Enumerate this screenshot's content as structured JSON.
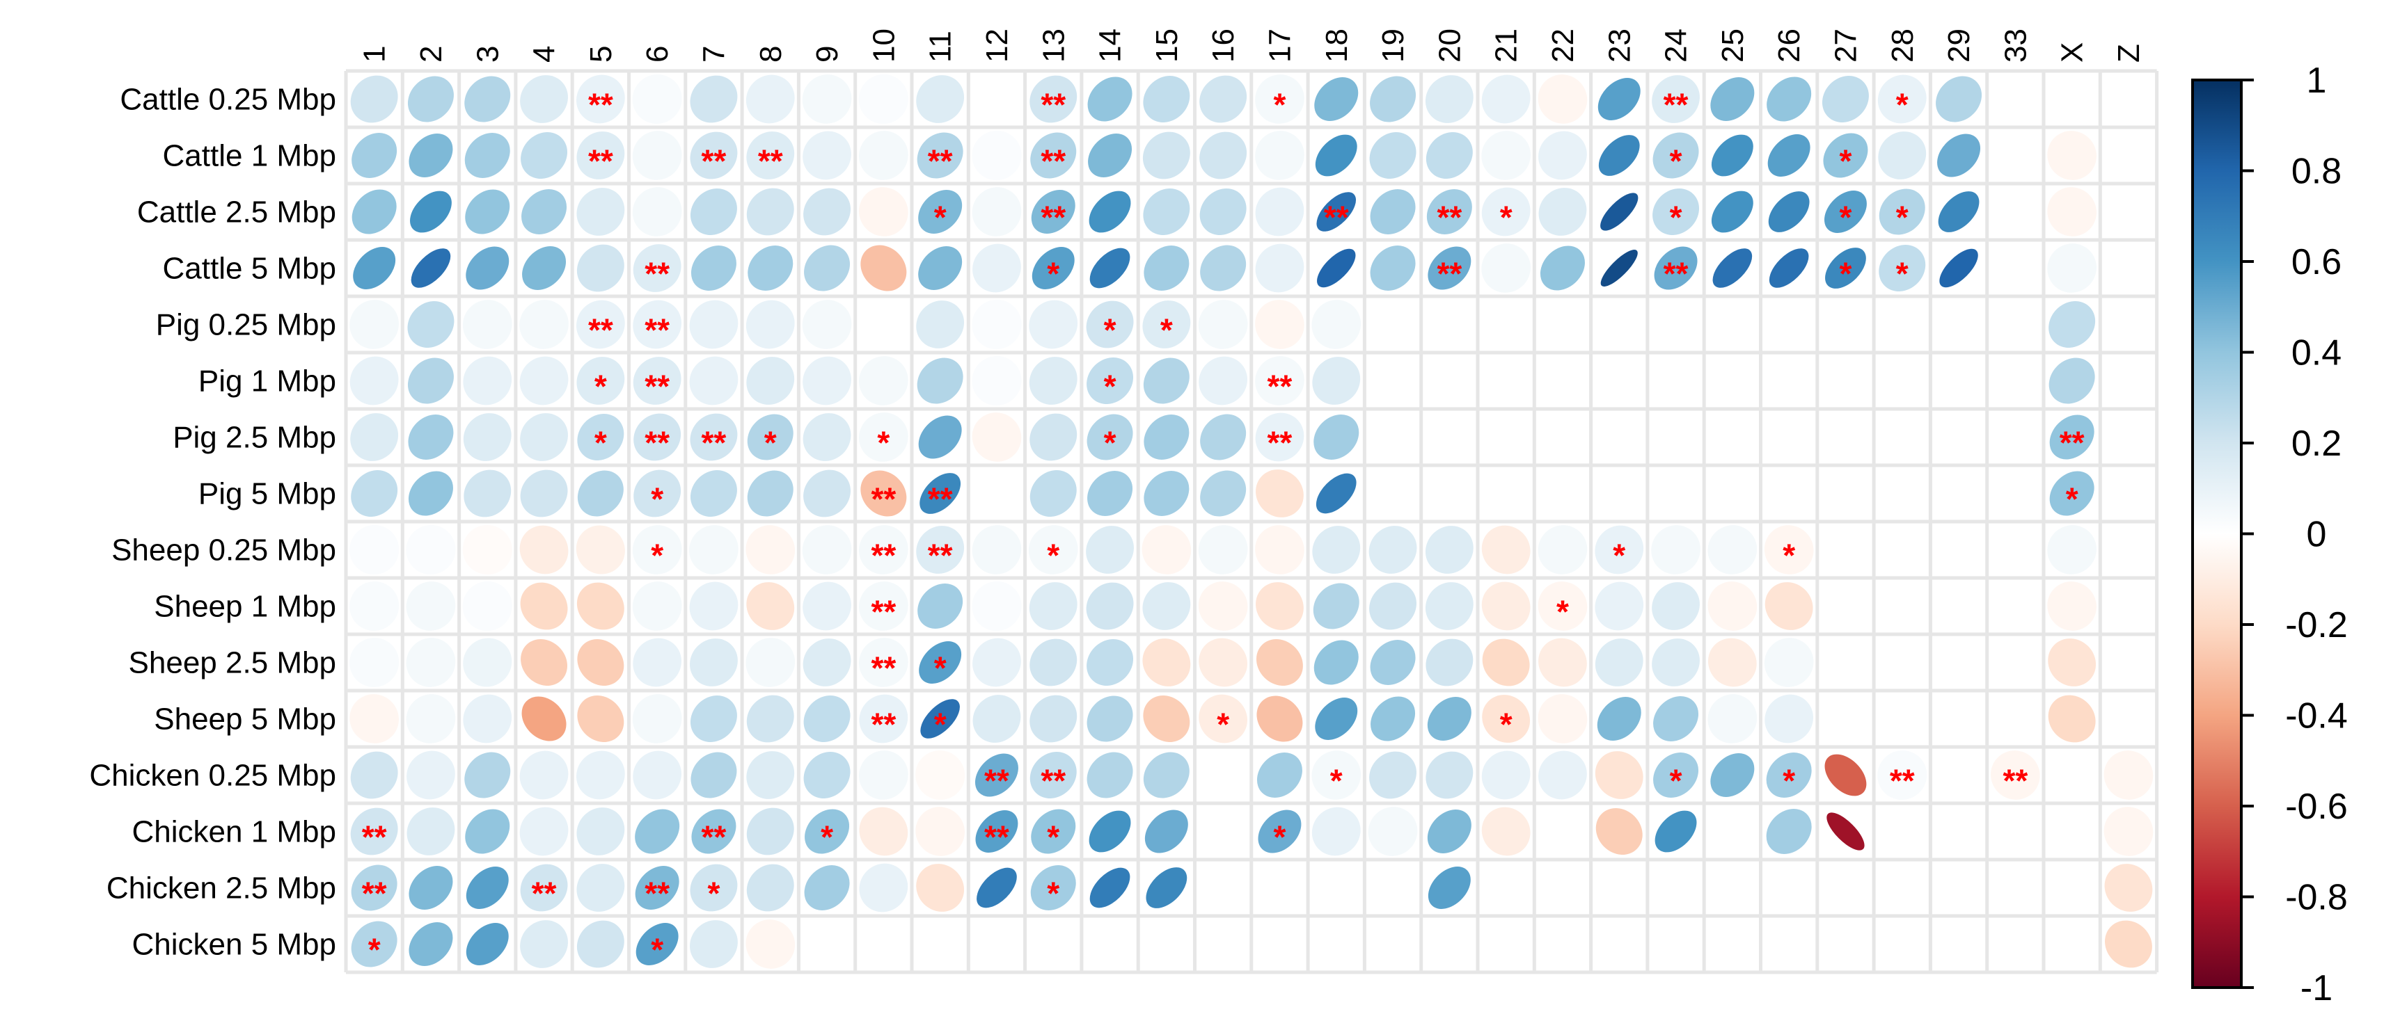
{
  "chart_data": {
    "type": "heatmap",
    "method": "ellipse",
    "rows": [
      "Cattle 0.25 Mbp",
      "Cattle 1 Mbp",
      "Cattle 2.5 Mbp",
      "Cattle 5 Mbp",
      "Pig 0.25 Mbp",
      "Pig 1 Mbp",
      "Pig 2.5 Mbp",
      "Pig 5 Mbp",
      "Sheep 0.25 Mbp",
      "Sheep 1 Mbp",
      "Sheep 2.5 Mbp",
      "Sheep 5 Mbp",
      "Chicken 0.25 Mbp",
      "Chicken 1 Mbp",
      "Chicken 2.5 Mbp",
      "Chicken 5 Mbp"
    ],
    "columns": [
      "1",
      "2",
      "3",
      "4",
      "5",
      "6",
      "7",
      "8",
      "9",
      "10",
      "11",
      "12",
      "13",
      "14",
      "15",
      "16",
      "17",
      "18",
      "19",
      "20",
      "21",
      "22",
      "23",
      "24",
      "25",
      "26",
      "27",
      "28",
      "29",
      "33",
      "X",
      "Z"
    ],
    "values": [
      [
        0.2,
        0.3,
        0.3,
        0.15,
        0.1,
        0.03,
        0.2,
        0.1,
        0.05,
        0.02,
        0.15,
        0,
        0.2,
        0.4,
        0.25,
        0.2,
        0.05,
        0.45,
        0.3,
        0.15,
        0.1,
        -0.05,
        0.55,
        0.15,
        0.45,
        0.4,
        0.25,
        0.1,
        0.3,
        null,
        null,
        null
      ],
      [
        0.35,
        0.45,
        0.35,
        0.25,
        0.15,
        0.05,
        0.2,
        0.15,
        0.1,
        0.05,
        0.3,
        0.02,
        0.3,
        0.45,
        0.2,
        0.2,
        0.05,
        0.6,
        0.25,
        0.25,
        0.05,
        0.1,
        0.65,
        0.3,
        0.6,
        0.55,
        0.4,
        0.15,
        0.5,
        null,
        -0.05,
        null
      ],
      [
        0.4,
        0.6,
        0.4,
        0.35,
        0.15,
        0.05,
        0.25,
        0.2,
        0.2,
        -0.05,
        0.45,
        0.05,
        0.45,
        0.6,
        0.25,
        0.25,
        0.1,
        0.75,
        0.35,
        0.35,
        0.1,
        0.15,
        0.85,
        0.25,
        0.6,
        0.65,
        0.55,
        0.3,
        0.65,
        null,
        -0.05,
        null
      ],
      [
        0.55,
        0.75,
        0.5,
        0.45,
        0.2,
        0.15,
        0.35,
        0.35,
        0.3,
        -0.3,
        0.45,
        0.1,
        0.55,
        0.7,
        0.35,
        0.3,
        0.1,
        0.8,
        0.35,
        0.5,
        0.05,
        0.4,
        0.9,
        0.5,
        0.75,
        0.75,
        0.65,
        0.25,
        0.8,
        null,
        0.05,
        null
      ],
      [
        0.05,
        0.25,
        0.05,
        0.05,
        0.1,
        0.1,
        0.1,
        0.1,
        0.05,
        0,
        0.15,
        0.02,
        0.1,
        0.2,
        0.15,
        0.05,
        -0.05,
        0.05,
        null,
        null,
        null,
        null,
        null,
        null,
        null,
        null,
        null,
        null,
        null,
        null,
        0.25,
        null
      ],
      [
        0.1,
        0.3,
        0.1,
        0.1,
        0.15,
        0.15,
        0.1,
        0.15,
        0.1,
        0.05,
        0.3,
        0.02,
        0.15,
        0.25,
        0.3,
        0.1,
        0.05,
        0.15,
        null,
        null,
        null,
        null,
        null,
        null,
        null,
        null,
        null,
        null,
        null,
        null,
        0.3,
        null
      ],
      [
        0.15,
        0.35,
        0.15,
        0.15,
        0.25,
        0.2,
        0.2,
        0.3,
        0.15,
        0.05,
        0.5,
        -0.05,
        0.2,
        0.3,
        0.35,
        0.3,
        0.1,
        0.35,
        null,
        null,
        null,
        null,
        null,
        null,
        null,
        null,
        null,
        null,
        null,
        null,
        0.4,
        null
      ],
      [
        0.25,
        0.4,
        0.2,
        0.2,
        0.3,
        0.2,
        0.25,
        0.3,
        0.2,
        -0.3,
        0.65,
        0,
        0.25,
        0.35,
        0.35,
        0.3,
        -0.15,
        0.7,
        null,
        null,
        null,
        null,
        null,
        null,
        null,
        null,
        null,
        null,
        null,
        null,
        0.4,
        null
      ],
      [
        0.02,
        0.02,
        -0.02,
        -0.1,
        -0.08,
        0.05,
        0.05,
        -0.05,
        0.05,
        0.05,
        0.15,
        0.05,
        0.05,
        0.15,
        -0.05,
        0.05,
        -0.05,
        0.15,
        0.15,
        0.15,
        -0.1,
        0.05,
        0.1,
        0.05,
        0.05,
        -0.05,
        null,
        null,
        null,
        null,
        0.05,
        null
      ],
      [
        0.03,
        0.05,
        0.02,
        -0.2,
        -0.2,
        0.05,
        0.1,
        -0.15,
        0.1,
        0.05,
        0.35,
        0.02,
        0.15,
        0.2,
        0.15,
        -0.05,
        -0.15,
        0.3,
        0.2,
        0.15,
        -0.1,
        -0.05,
        0.1,
        0.15,
        -0.05,
        -0.15,
        null,
        null,
        null,
        null,
        -0.05,
        null
      ],
      [
        0.03,
        0.05,
        0.08,
        -0.25,
        -0.25,
        0.1,
        0.15,
        0.05,
        0.15,
        0.05,
        0.55,
        0.1,
        0.2,
        0.25,
        -0.15,
        -0.1,
        -0.25,
        0.4,
        0.35,
        0.2,
        -0.2,
        -0.1,
        0.15,
        0.15,
        -0.1,
        0.05,
        null,
        null,
        null,
        null,
        -0.15,
        null
      ],
      [
        -0.05,
        0.05,
        0.1,
        -0.4,
        -0.25,
        0.05,
        0.25,
        0.2,
        0.25,
        0.1,
        0.75,
        0.15,
        0.2,
        0.3,
        -0.25,
        -0.1,
        -0.3,
        0.55,
        0.4,
        0.45,
        -0.15,
        -0.05,
        0.45,
        0.35,
        0.05,
        0.1,
        null,
        null,
        null,
        null,
        -0.2,
        null
      ],
      [
        0.2,
        0.1,
        0.3,
        0.1,
        0.1,
        0.1,
        0.3,
        0.15,
        0.25,
        0.05,
        -0.03,
        0.5,
        0.25,
        0.3,
        0.3,
        null,
        0.35,
        0.05,
        0.2,
        0.2,
        0.1,
        0.1,
        -0.15,
        0.35,
        0.45,
        0.35,
        -0.6,
        0.03,
        null,
        -0.05,
        null,
        -0.05
      ],
      [
        0.2,
        0.15,
        0.4,
        0.1,
        0.15,
        0.4,
        0.4,
        0.2,
        0.4,
        -0.1,
        -0.05,
        0.55,
        0.4,
        0.6,
        0.5,
        null,
        0.5,
        0.1,
        0.05,
        0.45,
        -0.1,
        null,
        -0.25,
        0.6,
        null,
        0.35,
        -0.85,
        null,
        null,
        null,
        null,
        -0.05
      ],
      [
        0.3,
        0.45,
        0.55,
        0.2,
        0.15,
        0.45,
        0.2,
        0.2,
        0.35,
        0.1,
        -0.15,
        0.7,
        0.35,
        0.7,
        0.65,
        null,
        null,
        null,
        null,
        0.55,
        null,
        null,
        null,
        null,
        null,
        null,
        null,
        null,
        null,
        null,
        null,
        -0.15
      ],
      [
        0.3,
        0.45,
        0.55,
        0.15,
        0.2,
        0.55,
        0.15,
        -0.05,
        null,
        null,
        null,
        null,
        null,
        null,
        null,
        null,
        null,
        null,
        null,
        null,
        null,
        null,
        null,
        null,
        null,
        null,
        null,
        null,
        null,
        null,
        null,
        -0.2
      ]
    ],
    "significance": [
      [
        "",
        "",
        "",
        "",
        "**",
        "",
        "",
        "",
        "",
        "",
        "",
        "",
        "**",
        "",
        "",
        "",
        "*",
        "",
        "",
        "",
        "",
        "",
        "",
        "**",
        "",
        "",
        "",
        "*",
        "",
        "",
        "",
        ""
      ],
      [
        "",
        "",
        "",
        "",
        "**",
        "",
        "**",
        "**",
        "",
        "",
        "**",
        "",
        "**",
        "",
        "",
        "",
        "",
        "",
        "",
        "",
        "",
        "",
        "",
        "*",
        "",
        "",
        "*",
        "",
        "",
        "",
        "",
        ""
      ],
      [
        "",
        "",
        "",
        "",
        "",
        "",
        "",
        "",
        "",
        "",
        "*",
        "",
        "**",
        "",
        "",
        "",
        "",
        "**",
        "",
        "**",
        "*",
        "",
        "",
        "*",
        "",
        "",
        "*",
        "*",
        "",
        "",
        "",
        ""
      ],
      [
        "",
        "",
        "",
        "",
        "",
        "**",
        "",
        "",
        "",
        "",
        "",
        "",
        "*",
        "",
        "",
        "",
        "",
        "",
        "",
        "**",
        "",
        "",
        "",
        "**",
        "",
        "",
        "*",
        "*",
        "",
        "",
        "",
        ""
      ],
      [
        "",
        "",
        "",
        "",
        "**",
        "**",
        "",
        "",
        "",
        "",
        "",
        "",
        "",
        "*",
        "*",
        "",
        "",
        "",
        "",
        "",
        "",
        "",
        "",
        "",
        "",
        "",
        "",
        "",
        "",
        "",
        "",
        ""
      ],
      [
        "",
        "",
        "",
        "",
        "*",
        "**",
        "",
        "",
        "",
        "",
        "",
        "",
        "",
        "*",
        "",
        "",
        "**",
        "",
        "",
        "",
        "",
        "",
        "",
        "",
        "",
        "",
        "",
        "",
        "",
        "",
        "",
        ""
      ],
      [
        "",
        "",
        "",
        "",
        "*",
        "**",
        "**",
        "*",
        "",
        "*",
        "",
        "",
        "",
        "*",
        "",
        "",
        "**",
        "",
        "",
        "",
        "",
        "",
        "",
        "",
        "",
        "",
        "",
        "",
        "",
        "",
        "**",
        ""
      ],
      [
        "",
        "",
        "",
        "",
        "",
        "*",
        "",
        "",
        "",
        "**",
        "**",
        "",
        "",
        "",
        "",
        "",
        "",
        "",
        "",
        "",
        "",
        "",
        "",
        "",
        "",
        "",
        "",
        "",
        "",
        "",
        "*",
        ""
      ],
      [
        "",
        "",
        "",
        "",
        "",
        "*",
        "",
        "",
        "",
        "**",
        "**",
        "",
        "*",
        "",
        "",
        "",
        "",
        "",
        "",
        "",
        "",
        "",
        "*",
        "",
        "",
        "*",
        "",
        "",
        "",
        "",
        "",
        ""
      ],
      [
        "",
        "",
        "",
        "",
        "",
        "",
        "",
        "",
        "",
        "**",
        "",
        "",
        "",
        "",
        "",
        "",
        "",
        "",
        "",
        "",
        "",
        "*",
        "",
        "",
        "",
        "",
        "",
        "",
        "",
        "",
        "",
        ""
      ],
      [
        "",
        "",
        "",
        "",
        "",
        "",
        "",
        "",
        "",
        "**",
        "*",
        "",
        "",
        "",
        "",
        "",
        "",
        "",
        "",
        "",
        "",
        "",
        "",
        "",
        "",
        "",
        "",
        "",
        "",
        "",
        "",
        ""
      ],
      [
        "",
        "",
        "",
        "",
        "",
        "",
        "",
        "",
        "",
        "**",
        "*",
        "",
        "",
        "",
        "",
        "*",
        "",
        "",
        "",
        "",
        "*",
        "",
        "",
        "",
        "",
        "",
        "",
        "",
        "",
        "",
        "",
        ""
      ],
      [
        "",
        "",
        "",
        "",
        "",
        "",
        "",
        "",
        "",
        "",
        "",
        "**",
        "**",
        "",
        "",
        "",
        "",
        "*",
        "",
        "",
        "",
        "",
        "",
        "*",
        "",
        "*",
        "",
        "**",
        "",
        "**",
        "",
        ""
      ],
      [
        "**",
        "",
        "",
        "",
        "",
        "",
        "**",
        "",
        "*",
        "",
        "",
        "**",
        "*",
        "",
        "",
        "",
        "*",
        "",
        "",
        "",
        "",
        "",
        "",
        "",
        "",
        "",
        "",
        "",
        "",
        "",
        "",
        ""
      ],
      [
        "**",
        "",
        "",
        "**",
        "",
        "**",
        "*",
        "",
        "",
        "",
        "",
        "",
        "*",
        "",
        "",
        "",
        "",
        "",
        "",
        "",
        "",
        "",
        "",
        "",
        "",
        "",
        "",
        "",
        "",
        "",
        "",
        ""
      ],
      [
        "*",
        "",
        "",
        "",
        "",
        "*",
        "",
        "",
        "",
        "",
        "",
        "",
        "",
        "",
        "",
        "",
        "",
        "",
        "",
        "",
        "",
        "",
        "",
        "",
        "",
        "",
        "",
        "",
        "",
        "",
        "",
        ""
      ]
    ],
    "colorbar": {
      "labels": [
        "1",
        "0.8",
        "0.6",
        "0.4",
        "0.2",
        "0",
        "-0.2",
        "-0.4",
        "-0.6",
        "-0.8",
        "-1"
      ],
      "range": [
        -1,
        1
      ],
      "colors": [
        "#67001F",
        "#B2182B",
        "#D6604D",
        "#F4A582",
        "#FDDBC7",
        "#FFFFFF",
        "#D1E5F0",
        "#92C5DE",
        "#4393C3",
        "#2166AC",
        "#053061"
      ]
    },
    "grid_color": "#e6e6e6",
    "significance_color": "#ff0000"
  }
}
